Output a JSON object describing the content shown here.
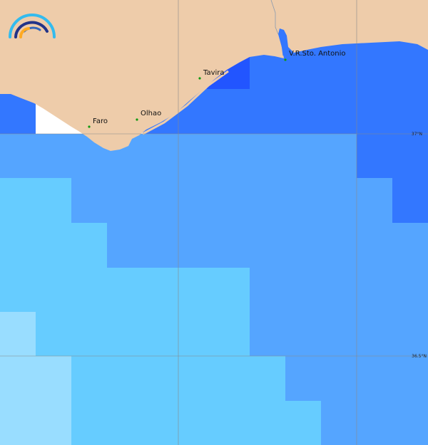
{
  "map": {
    "towns": [
      {
        "name": "Faro"
      },
      {
        "name": "Olhao"
      },
      {
        "name": "Tavira"
      },
      {
        "name": "V.R.Sto. Antonio"
      }
    ],
    "latitude_labels": [
      "37°N",
      "36.5°N"
    ],
    "colors": {
      "land": "#eeccaa",
      "class_darkest": "#2255ff",
      "class_dark": "#3377ff",
      "class_mid": "#55a5ff",
      "class_light": "#66ccff",
      "class_lightest": "#99ddff",
      "no_data": "#ffffff",
      "town_marker": "#119911"
    },
    "logo": "arc-waves-logo"
  }
}
